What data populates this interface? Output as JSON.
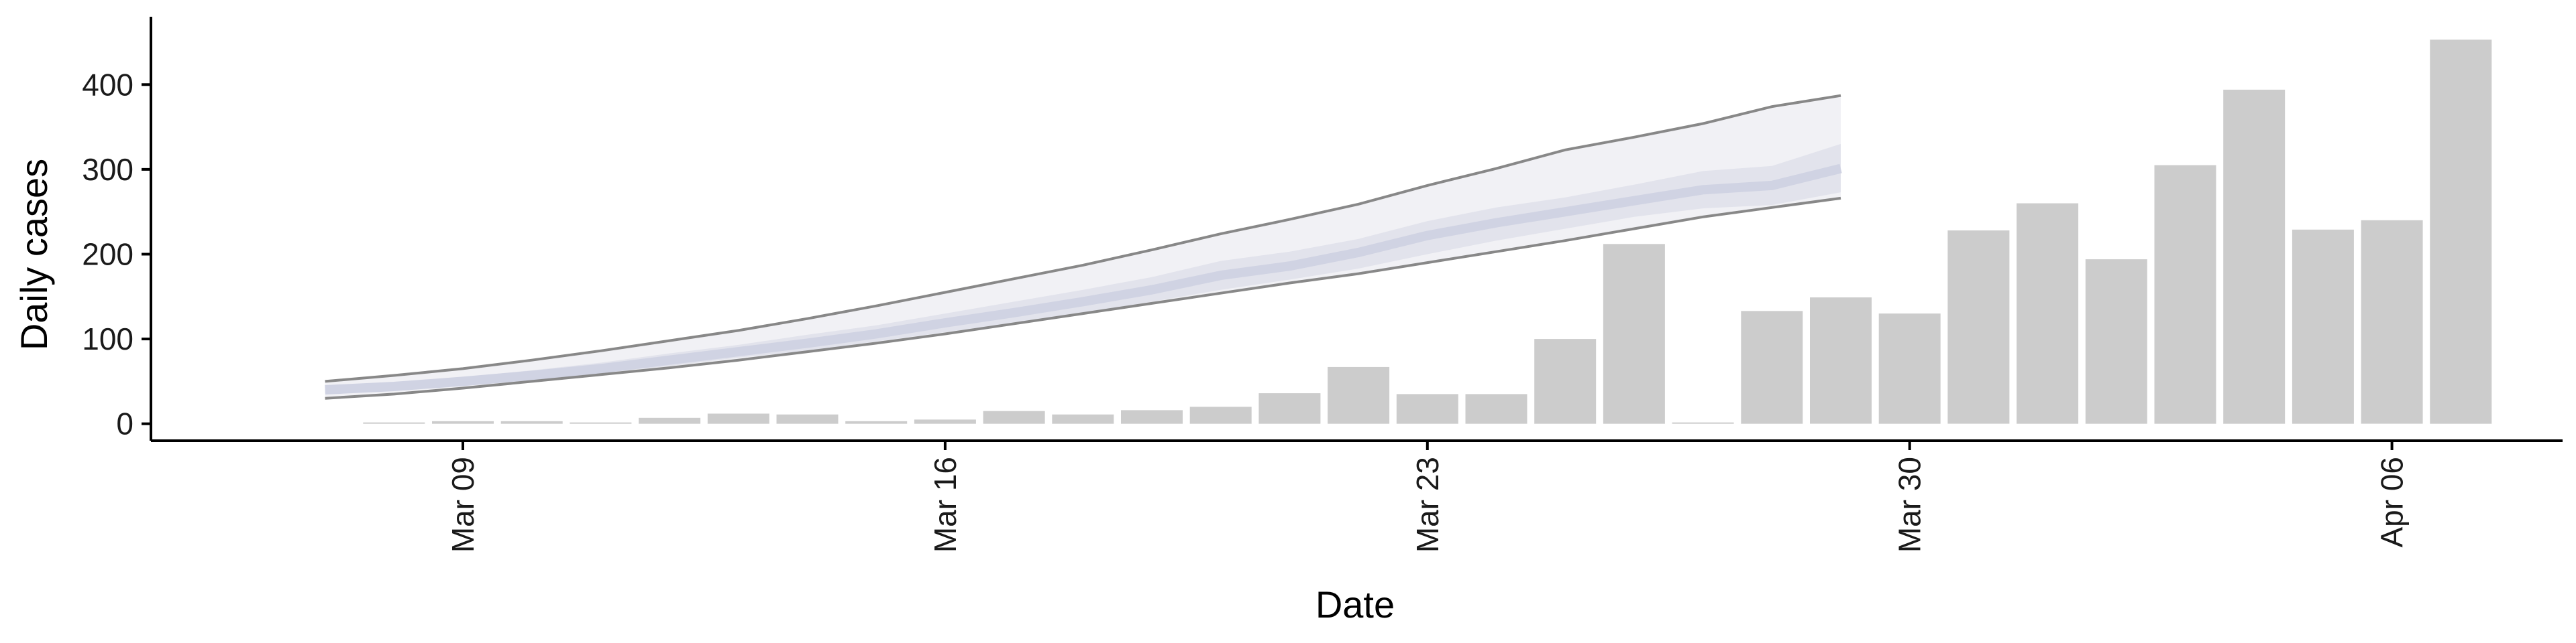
{
  "chart_data": {
    "type": "bar",
    "title": "",
    "xlabel": "Date",
    "ylabel": "Daily cases",
    "ylim": [
      -20,
      480
    ],
    "y_ticks": [
      0,
      100,
      200,
      300,
      400
    ],
    "x_ticks": [
      "Mar 09",
      "Mar 16",
      "Mar 23",
      "Mar 30",
      "Apr 06"
    ],
    "grid": false,
    "legend": "none",
    "colors": {
      "bars": "#cccccc",
      "band_outer": "#f1f1f5",
      "band_inner": "#e2e3ec",
      "median_line": "#d0d3e3",
      "bound_line": "#888888"
    },
    "bars": {
      "name": "",
      "x": [
        "Mar 08",
        "Mar 09",
        "Mar 10",
        "Mar 11",
        "Mar 12",
        "Mar 13",
        "Mar 14",
        "Mar 15",
        "Mar 16",
        "Mar 17",
        "Mar 18",
        "Mar 19",
        "Mar 20",
        "Mar 21",
        "Mar 22",
        "Mar 23",
        "Mar 24",
        "Mar 25",
        "Mar 26",
        "Mar 27",
        "Mar 28",
        "Mar 29",
        "Mar 30",
        "Mar 31",
        "Apr 01",
        "Apr 02",
        "Apr 03",
        "Apr 04",
        "Apr 05",
        "Apr 06",
        "Apr 07"
      ],
      "values": [
        1,
        3,
        3,
        1,
        7,
        12,
        11,
        3,
        5,
        15,
        11,
        16,
        20,
        36,
        67,
        35,
        35,
        100,
        212,
        1,
        133,
        149,
        130,
        228,
        260,
        194,
        305,
        394,
        229,
        240,
        453
      ]
    },
    "forecast": {
      "x": [
        "Mar 07",
        "Mar 08",
        "Mar 09",
        "Mar 10",
        "Mar 11",
        "Mar 12",
        "Mar 13",
        "Mar 14",
        "Mar 15",
        "Mar 16",
        "Mar 17",
        "Mar 18",
        "Mar 19",
        "Mar 20",
        "Mar 21",
        "Mar 22",
        "Mar 23",
        "Mar 24",
        "Mar 25",
        "Mar 26",
        "Mar 27",
        "Mar 28",
        "Mar 29"
      ],
      "upper_90": [
        50,
        57,
        65,
        75,
        86,
        98,
        110,
        124,
        139,
        155,
        171,
        187,
        205,
        224,
        241,
        259,
        281,
        301,
        323,
        338,
        354,
        374,
        387
      ],
      "upper_50": [
        44,
        48,
        55,
        63,
        72,
        83,
        93,
        105,
        116,
        130,
        144,
        158,
        173,
        192,
        203,
        218,
        239,
        255,
        267,
        282,
        298,
        304,
        330
      ],
      "median": [
        40,
        44,
        50,
        57,
        65,
        75,
        85,
        95,
        106,
        119,
        131,
        144,
        158,
        175,
        186,
        202,
        222,
        237,
        250,
        263,
        276,
        281,
        301
      ],
      "lower_50": [
        36,
        41,
        46,
        53,
        60,
        68,
        78,
        86,
        97,
        108,
        119,
        131,
        144,
        158,
        170,
        183,
        200,
        216,
        230,
        244,
        254,
        258,
        273
      ],
      "lower_90": [
        30,
        35,
        42,
        50,
        58,
        66,
        75,
        85,
        95,
        106,
        118,
        130,
        142,
        154,
        166,
        177,
        190,
        203,
        216,
        230,
        244,
        255,
        266
      ]
    }
  }
}
